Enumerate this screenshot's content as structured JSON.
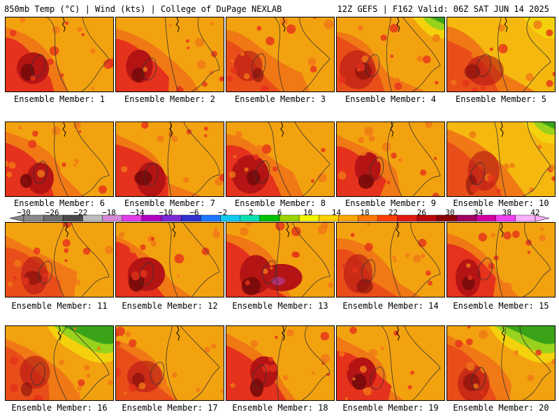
{
  "header": {
    "left": "850mb Temp (°C) | Wind (kts) | College of DuPage NEXLAB",
    "right": "12Z GEFS | F162 Valid: 06Z SAT JUN 14 2025"
  },
  "caption_prefix": "Ensemble Member: ",
  "members": [
    {
      "n": "1",
      "tone": "hot"
    },
    {
      "n": "2",
      "tone": "hot"
    },
    {
      "n": "3",
      "tone": "warm"
    },
    {
      "n": "4",
      "tone": "warm-green"
    },
    {
      "n": "5",
      "tone": "cool"
    },
    {
      "n": "6",
      "tone": "hot"
    },
    {
      "n": "7",
      "tone": "hot"
    },
    {
      "n": "8",
      "tone": "hot"
    },
    {
      "n": "9",
      "tone": "hot"
    },
    {
      "n": "10",
      "tone": "cool-green"
    },
    {
      "n": "11",
      "tone": "warm"
    },
    {
      "n": "12",
      "tone": "hot"
    },
    {
      "n": "13",
      "tone": "very-hot"
    },
    {
      "n": "14",
      "tone": "warm"
    },
    {
      "n": "15",
      "tone": "hot"
    },
    {
      "n": "16",
      "tone": "green"
    },
    {
      "n": "17",
      "tone": "warm"
    },
    {
      "n": "18",
      "tone": "hot"
    },
    {
      "n": "19",
      "tone": "hot"
    },
    {
      "n": "20",
      "tone": "green-strong"
    }
  ],
  "colorbar": {
    "labels": [
      "−30",
      "−26",
      "−22",
      "−18",
      "−14",
      "−10",
      "−6",
      "−2",
      "2",
      "6",
      "10",
      "14",
      "18",
      "22",
      "26",
      "30",
      "34",
      "38",
      "42"
    ],
    "colors": [
      "#8a8a8a",
      "#6e6e6e",
      "#4a4a4a",
      "#bdbdbd",
      "#d68ad6",
      "#e23de8",
      "#b000c0",
      "#7b2ad6",
      "#3232d0",
      "#1e78ff",
      "#12c8f0",
      "#10e0b0",
      "#00c000",
      "#9ad400",
      "#f5f500",
      "#ffd000",
      "#ffa500",
      "#ff7800",
      "#ff4000",
      "#e01a10",
      "#b80808",
      "#880000",
      "#a00060",
      "#d000a0",
      "#f040f0",
      "#ffb0ff"
    ]
  },
  "palette": {
    "green": "#3aa317",
    "lightgreen": "#98d21c",
    "yellow": "#f3d20d",
    "orange": "#f3a20f",
    "darkorange": "#f07815",
    "red": "#e5321c",
    "darkred": "#b41414",
    "maroon": "#780a0a",
    "purple": "#b03070"
  }
}
